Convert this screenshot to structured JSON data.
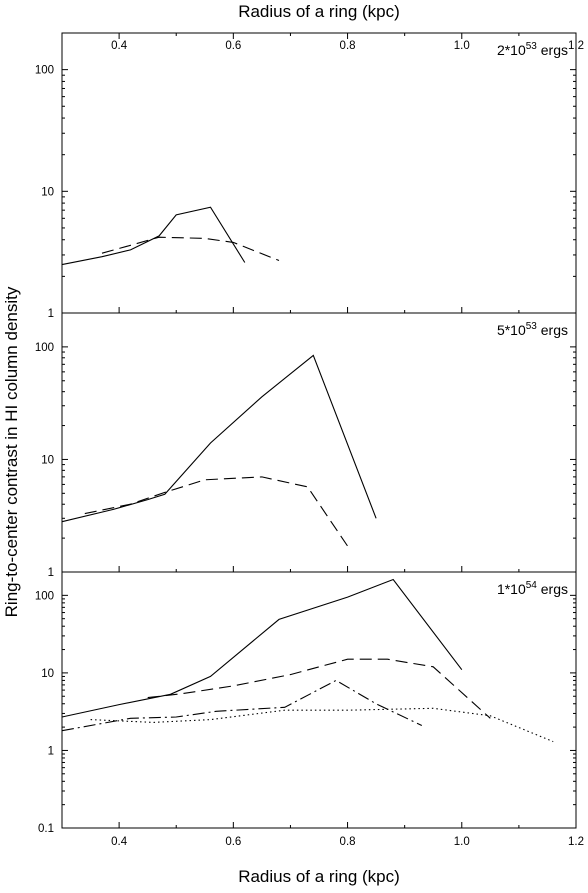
{
  "figure": {
    "top_axis_label": "Radius of a ring (kpc)",
    "bottom_axis_label": "Radius of a ring (kpc)",
    "ylabel": "Ring-to-center contrast in HI column density"
  },
  "chart_data": [
    {
      "type": "line",
      "xlim": [
        0.3,
        1.2
      ],
      "ylim": [
        1,
        200
      ],
      "y_scale": "log",
      "x_ticks": [
        "0.4",
        "0.6",
        "0.8",
        "1.0",
        "1.2"
      ],
      "y_ticks": [
        "1",
        "10",
        "100"
      ],
      "annotation": {
        "base": "2*10",
        "exp": "53",
        "unit": " ergs"
      },
      "series": [
        {
          "style": "solid",
          "x": [
            0.3,
            0.37,
            0.42,
            0.47,
            0.5,
            0.56,
            0.62
          ],
          "y": [
            2.5,
            2.9,
            3.3,
            4.3,
            6.4,
            7.4,
            2.6
          ]
        },
        {
          "style": "dashed",
          "x": [
            0.37,
            0.42,
            0.47,
            0.55,
            0.6,
            0.68
          ],
          "y": [
            3.1,
            3.6,
            4.2,
            4.1,
            3.8,
            2.7
          ]
        }
      ]
    },
    {
      "type": "line",
      "xlim": [
        0.3,
        1.2
      ],
      "ylim": [
        1,
        200
      ],
      "y_scale": "log",
      "x_ticks": [],
      "y_ticks": [
        "1",
        "10",
        "100"
      ],
      "annotation": {
        "base": "5*10",
        "exp": "53",
        "unit": " ergs"
      },
      "series": [
        {
          "style": "solid",
          "x": [
            0.3,
            0.39,
            0.45,
            0.48,
            0.56,
            0.65,
            0.74,
            0.85
          ],
          "y": [
            2.8,
            3.6,
            4.4,
            4.9,
            14,
            36,
            84,
            3
          ]
        },
        {
          "style": "dashed",
          "x": [
            0.34,
            0.42,
            0.48,
            0.55,
            0.65,
            0.73,
            0.8
          ],
          "y": [
            3.3,
            4,
            5.1,
            6.6,
            7,
            5.7,
            1.7
          ]
        }
      ]
    },
    {
      "type": "line",
      "xlim": [
        0.3,
        1.2
      ],
      "ylim": [
        0.1,
        200
      ],
      "y_scale": "log",
      "x_ticks": [
        "0.4",
        "0.6",
        "0.8",
        "1.0",
        "1.2"
      ],
      "y_ticks": [
        "0.1",
        "1",
        "10",
        "100"
      ],
      "annotation": {
        "base": "1*10",
        "exp": "54",
        "unit": " ergs"
      },
      "series": [
        {
          "style": "solid",
          "x": [
            0.3,
            0.4,
            0.49,
            0.56,
            0.68,
            0.8,
            0.88,
            1.0
          ],
          "y": [
            2.7,
            3.9,
            5.3,
            9,
            49,
            95,
            160,
            11
          ]
        },
        {
          "style": "dashed",
          "x": [
            0.45,
            0.51,
            0.6,
            0.7,
            0.8,
            0.87,
            0.95,
            1.05
          ],
          "y": [
            4.8,
            5.4,
            6.8,
            9.5,
            15,
            15,
            12,
            2.6
          ]
        },
        {
          "style": "dashdot",
          "x": [
            0.3,
            0.42,
            0.5,
            0.57,
            0.69,
            0.78,
            0.85,
            0.93
          ],
          "y": [
            1.8,
            2.6,
            2.7,
            3.2,
            3.6,
            8,
            4,
            2.1
          ]
        },
        {
          "style": "dotted",
          "x": [
            0.35,
            0.46,
            0.56,
            0.69,
            0.8,
            0.95,
            1.05,
            1.16
          ],
          "y": [
            2.5,
            2.3,
            2.5,
            3.3,
            3.3,
            3.5,
            2.8,
            1.3
          ]
        }
      ]
    }
  ]
}
